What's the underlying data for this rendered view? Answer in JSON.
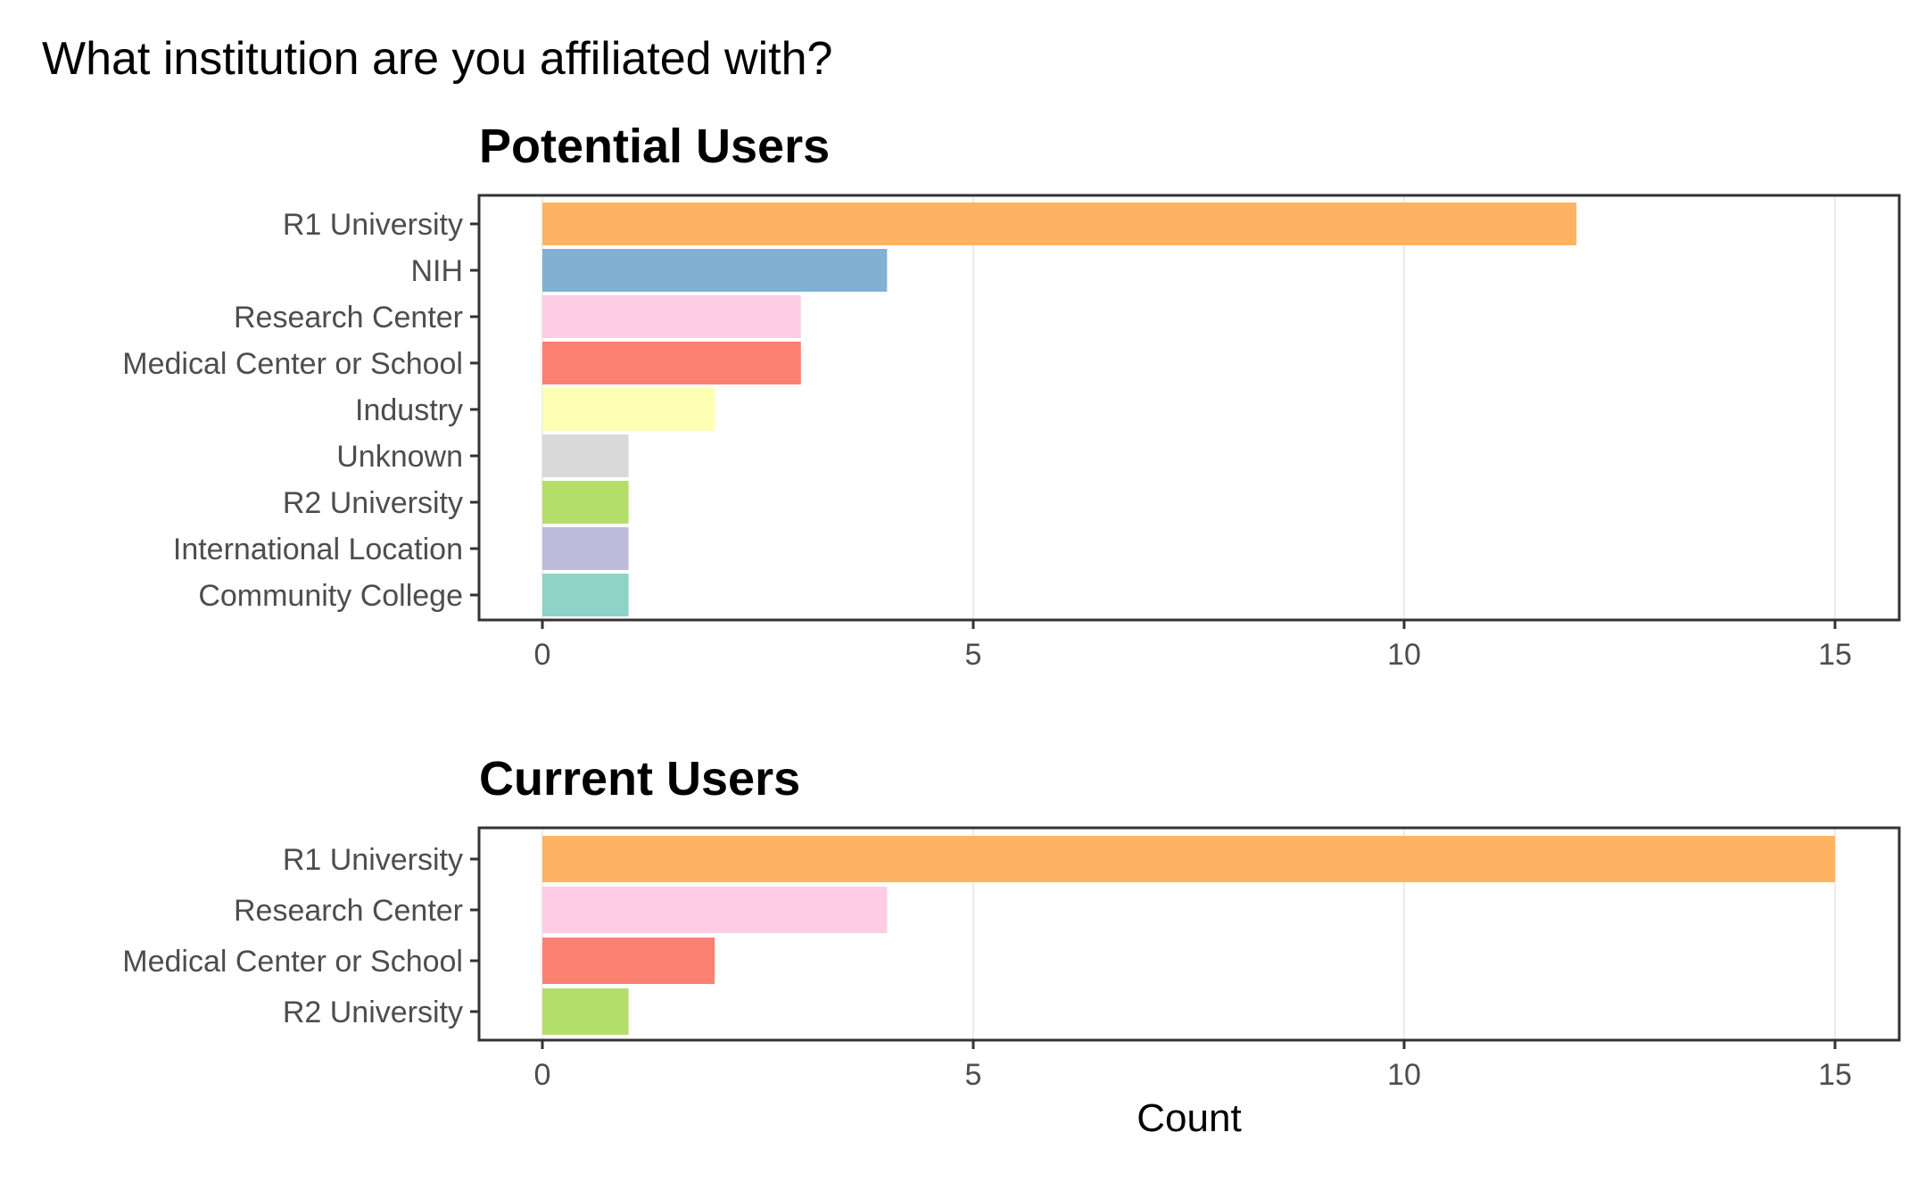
{
  "title": "What institution are you affiliated with?",
  "xlabel": "Count",
  "chart_data": [
    {
      "type": "bar",
      "orientation": "horizontal",
      "title": "Potential Users",
      "categories": [
        "R1 University",
        "NIH",
        "Research Center",
        "Medical Center or School",
        "Industry",
        "Unknown",
        "R2 University",
        "International Location",
        "Community College"
      ],
      "values": [
        12,
        4,
        3,
        3,
        2,
        1,
        1,
        1,
        1
      ],
      "colors": [
        "#FDB462",
        "#80B1D3",
        "#FCCDE5",
        "#FB8072",
        "#FFFFB3",
        "#D9D9D9",
        "#B3DE69",
        "#BEBADA",
        "#8DD3C7"
      ],
      "xlim": [
        0,
        15
      ],
      "xticks": [
        0,
        5,
        10,
        15
      ],
      "xlabel": "",
      "ylabel": "",
      "grid": true
    },
    {
      "type": "bar",
      "orientation": "horizontal",
      "title": "Current Users",
      "categories": [
        "R1 University",
        "Research Center",
        "Medical Center or School",
        "R2 University"
      ],
      "values": [
        15,
        4,
        2,
        1
      ],
      "colors": [
        "#FDB462",
        "#FCCDE5",
        "#FB8072",
        "#B3DE69"
      ],
      "xlim": [
        0,
        15
      ],
      "xticks": [
        0,
        5,
        10,
        15
      ],
      "xlabel": "Count",
      "ylabel": "",
      "grid": true
    }
  ]
}
